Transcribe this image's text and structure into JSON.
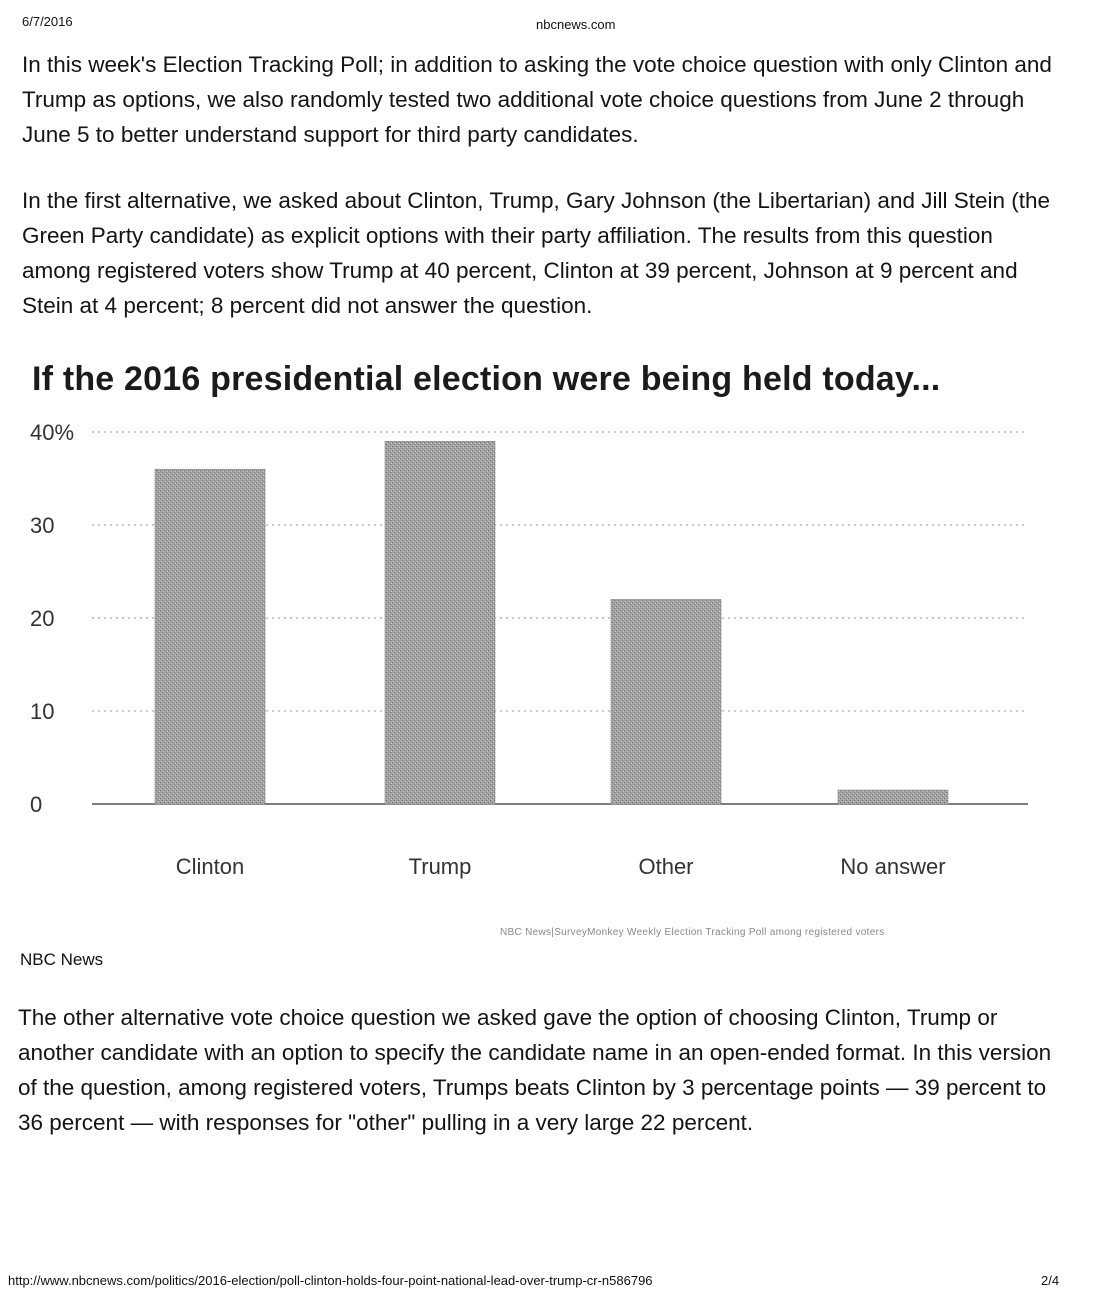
{
  "print_header": {
    "date": "6/7/2016",
    "domain": "nbcnews.com"
  },
  "article": {
    "paragraph_1": "In this week's Election Tracking Poll; in addition to asking the vote choice question with only Clinton and Trump as options, we also randomly tested two additional vote choice questions from June 2 through June 5 to better understand support for third party candidates.",
    "paragraph_2": "In the first alternative, we asked about Clinton, Trump, Gary Johnson (the Libertarian) and Jill Stein (the Green Party candidate) as explicit options with their party affiliation. The results from this question among registered voters show Trump at 40 percent, Clinton at 39 percent, Johnson at 9 percent and Stein at 4 percent; 8 percent did not answer the question.",
    "paragraph_3": "The other alternative vote choice question we asked gave the option of choosing Clinton, Trump or another candidate with an option to specify the candidate name in an open-ended format. In this version of the question, among registered voters, Trumps beats Clinton by 3 percentage points — 39 percent to 36 percent — with responses for \"other\" pulling in a very large 22 percent."
  },
  "figure": {
    "source": "NBC News|SurveyMonkey Weekly Election Tracking Poll among registered voters",
    "credit": "NBC News"
  },
  "chart_data": {
    "type": "bar",
    "title": "If the 2016 presidential election were being held today...",
    "categories": [
      "Clinton",
      "Trump",
      "Other",
      "No answer"
    ],
    "values": [
      36,
      39,
      22,
      1.5
    ],
    "ylim": [
      0,
      40
    ],
    "yticks": [
      "0",
      "10",
      "20",
      "30",
      "40%"
    ],
    "xlabel": "",
    "ylabel": "",
    "grid": "dotted horizontal",
    "bar_color": "#9a9a9a"
  },
  "print_footer": {
    "url": "http://www.nbcnews.com/politics/2016-election/poll-clinton-holds-four-point-national-lead-over-trump-cr-n586796",
    "page": "2/4"
  }
}
